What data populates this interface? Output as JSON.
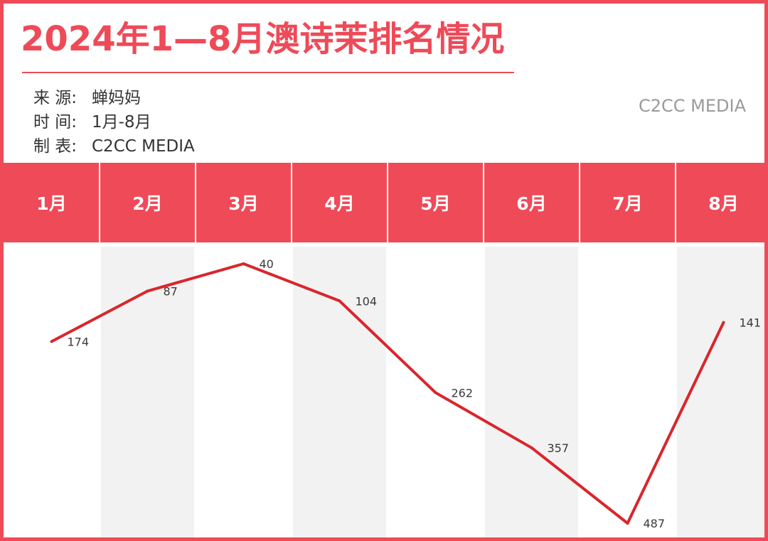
{
  "header": {
    "title": "2024年1—8月澳诗茉排名情况",
    "source_label": "来  源:",
    "source_value": "蝉妈妈",
    "time_label": "时  间:",
    "time_value": "1月-8月",
    "maker_label": "制  表:",
    "maker_value": "C2CC  MEDIA",
    "watermark": "C2CC MEDIA"
  },
  "colors": {
    "accent": "#ee4a58",
    "line": "#d9262c",
    "band": "#f2f2f2"
  },
  "chart_data": {
    "type": "line",
    "title": "2024年1—8月澳诗茉排名情况",
    "categories": [
      "1月",
      "2月",
      "3月",
      "4月",
      "5月",
      "6月",
      "7月",
      "8月"
    ],
    "series": [
      {
        "values": [
          174,
          87,
          40,
          104,
          262,
          357,
          487,
          141
        ]
      }
    ],
    "y_inverted": true,
    "ylim": [
      0,
      500
    ],
    "grid": false,
    "legend": "none"
  }
}
